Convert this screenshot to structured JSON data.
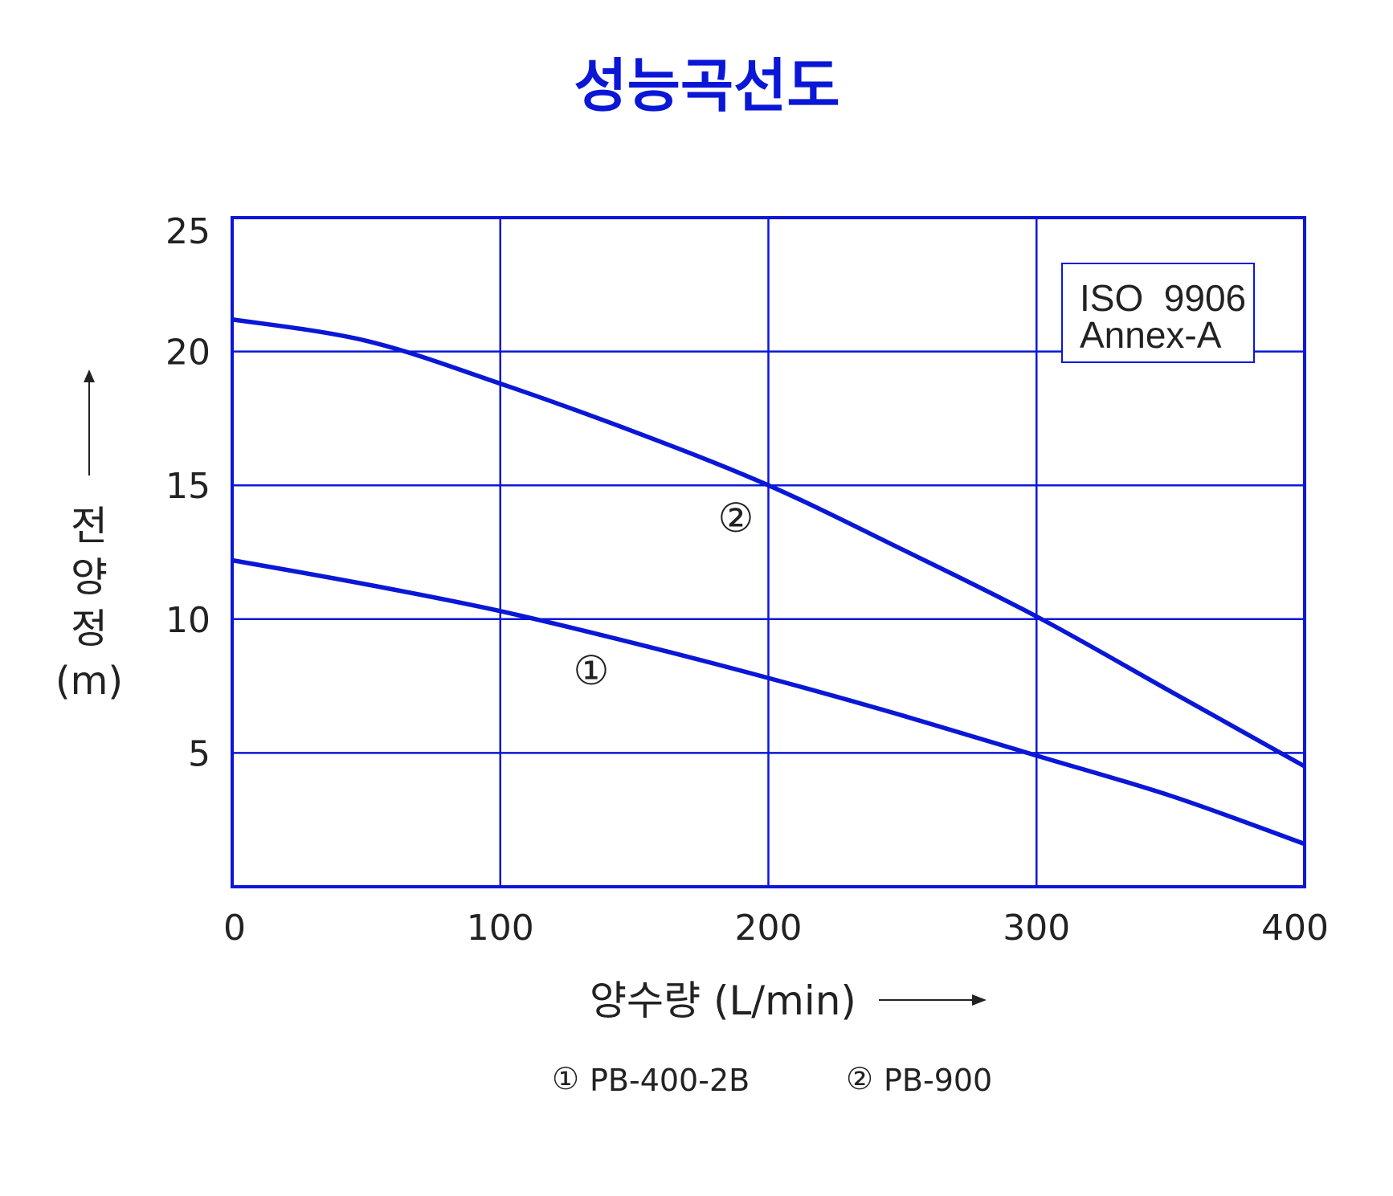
{
  "chart_data": {
    "type": "line",
    "title": "성능곡선도",
    "xlabel": "양수량 (L/min)",
    "ylabel_chars": [
      "전",
      "양",
      "정"
    ],
    "ylabel_unit": "(m)",
    "xlim": [
      0,
      400
    ],
    "ylim": [
      0,
      25
    ],
    "x_ticks": [
      0,
      100,
      200,
      300,
      400
    ],
    "y_ticks": [
      5,
      10,
      15,
      20,
      25
    ],
    "grid": true,
    "series": [
      {
        "marker": "①",
        "name": "PB-400-2B",
        "x": [
          0,
          50,
          100,
          150,
          200,
          250,
          300,
          350,
          400
        ],
        "y": [
          12.2,
          11.3,
          10.3,
          9.1,
          7.8,
          6.4,
          4.9,
          3.4,
          1.6
        ]
      },
      {
        "marker": "②",
        "name": "PB-900",
        "x": [
          0,
          50,
          100,
          150,
          200,
          250,
          300,
          350,
          400
        ],
        "y": [
          21.2,
          20.4,
          18.8,
          17.0,
          15.0,
          12.6,
          10.1,
          7.3,
          4.5
        ]
      }
    ],
    "annotation_lines": [
      "ISO  9906",
      "Annex-A"
    ],
    "colors": {
      "accent": "#0a17d6",
      "text": "#222222",
      "background": "#ffffff"
    }
  }
}
